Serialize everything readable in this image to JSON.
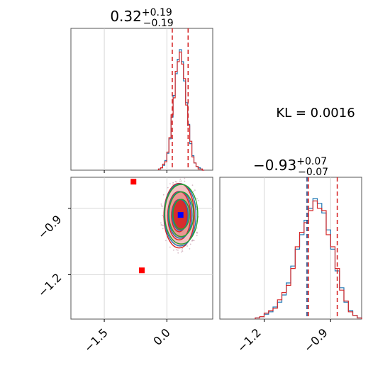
{
  "chart_data": {
    "type": "corner",
    "annotation": "KL = 0.0016",
    "params": [
      {
        "median": "0.32",
        "upper": "+0.19",
        "lower": "−0.19",
        "quantiles": [
          0.13,
          0.51
        ],
        "xlim": [
          -2.3,
          1.1
        ],
        "ticks": [
          {
            "value": -1.5,
            "label": "−1.5"
          },
          {
            "value": 0.0,
            "label": "0.0"
          }
        ]
      },
      {
        "median": "−0.93",
        "upper": "+0.07",
        "lower": "−0.07",
        "quantiles": [
          -1.0,
          -0.87
        ],
        "xlim": [
          -1.4,
          -0.76
        ],
        "ticks": [
          {
            "value": -1.2,
            "label": "−1.2"
          },
          {
            "value": -0.9,
            "label": "−0.9"
          }
        ]
      }
    ],
    "hist1": {
      "bins": [
        -0.2,
        -0.15,
        -0.1,
        -0.05,
        0.0,
        0.05,
        0.1,
        0.15,
        0.2,
        0.25,
        0.3,
        0.35,
        0.4,
        0.45,
        0.5,
        0.55,
        0.6,
        0.65,
        0.7,
        0.75,
        0.8,
        0.85,
        0.9
      ],
      "series": [
        {
          "name": "",
          "color": "#1f77b4",
          "values": [
            0.01,
            0.02,
            0.04,
            0.08,
            0.14,
            0.26,
            0.44,
            0.62,
            0.8,
            0.92,
            1.0,
            0.9,
            0.74,
            0.56,
            0.38,
            0.22,
            0.12,
            0.06,
            0.03,
            0.02,
            0.01,
            0.0
          ]
        },
        {
          "name": "",
          "color": "#d62728",
          "values": [
            0.01,
            0.02,
            0.05,
            0.07,
            0.15,
            0.27,
            0.46,
            0.6,
            0.82,
            0.9,
            0.98,
            0.88,
            0.76,
            0.54,
            0.37,
            0.24,
            0.11,
            0.06,
            0.03,
            0.01,
            0.01,
            0.0
          ]
        }
      ]
    },
    "hist2": {
      "bins": [
        -1.24,
        -1.22,
        -1.2,
        -1.18,
        -1.16,
        -1.14,
        -1.12,
        -1.1,
        -1.08,
        -1.06,
        -1.04,
        -1.02,
        -1.0,
        -0.98,
        -0.96,
        -0.94,
        -0.92,
        -0.9,
        -0.88,
        -0.86,
        -0.84,
        -0.82,
        -0.8,
        -0.78,
        -0.76
      ],
      "series": [
        {
          "name": "",
          "color": "#1f77b4",
          "values": [
            0.01,
            0.02,
            0.04,
            0.06,
            0.1,
            0.14,
            0.2,
            0.3,
            0.44,
            0.58,
            0.7,
            0.82,
            0.92,
            1.0,
            0.96,
            0.88,
            0.74,
            0.58,
            0.4,
            0.26,
            0.14,
            0.07,
            0.03,
            0.01
          ]
        },
        {
          "name": "",
          "color": "#d62728",
          "values": [
            0.01,
            0.02,
            0.05,
            0.07,
            0.09,
            0.16,
            0.22,
            0.28,
            0.42,
            0.6,
            0.72,
            0.8,
            0.9,
            0.98,
            0.92,
            0.9,
            0.7,
            0.6,
            0.42,
            0.24,
            0.15,
            0.06,
            0.03,
            0.01
          ]
        }
      ]
    },
    "joint": {
      "xlim": [
        -2.3,
        1.1
      ],
      "ylim": [
        -1.4,
        -0.76
      ],
      "yticks": [
        {
          "value": -0.9,
          "label": "−0.9"
        },
        {
          "value": -1.2,
          "label": "−1.2"
        }
      ],
      "center": [
        0.32,
        -0.93
      ],
      "sigma": [
        0.19,
        0.07
      ],
      "markers_red": [
        [
          -0.8,
          -0.78
        ],
        [
          -0.6,
          -1.18
        ]
      ],
      "marker_blue": [
        0.33,
        -0.93
      ],
      "contour_colors": [
        "#d62728",
        "#1f77b4",
        "#2ca02c"
      ]
    }
  }
}
